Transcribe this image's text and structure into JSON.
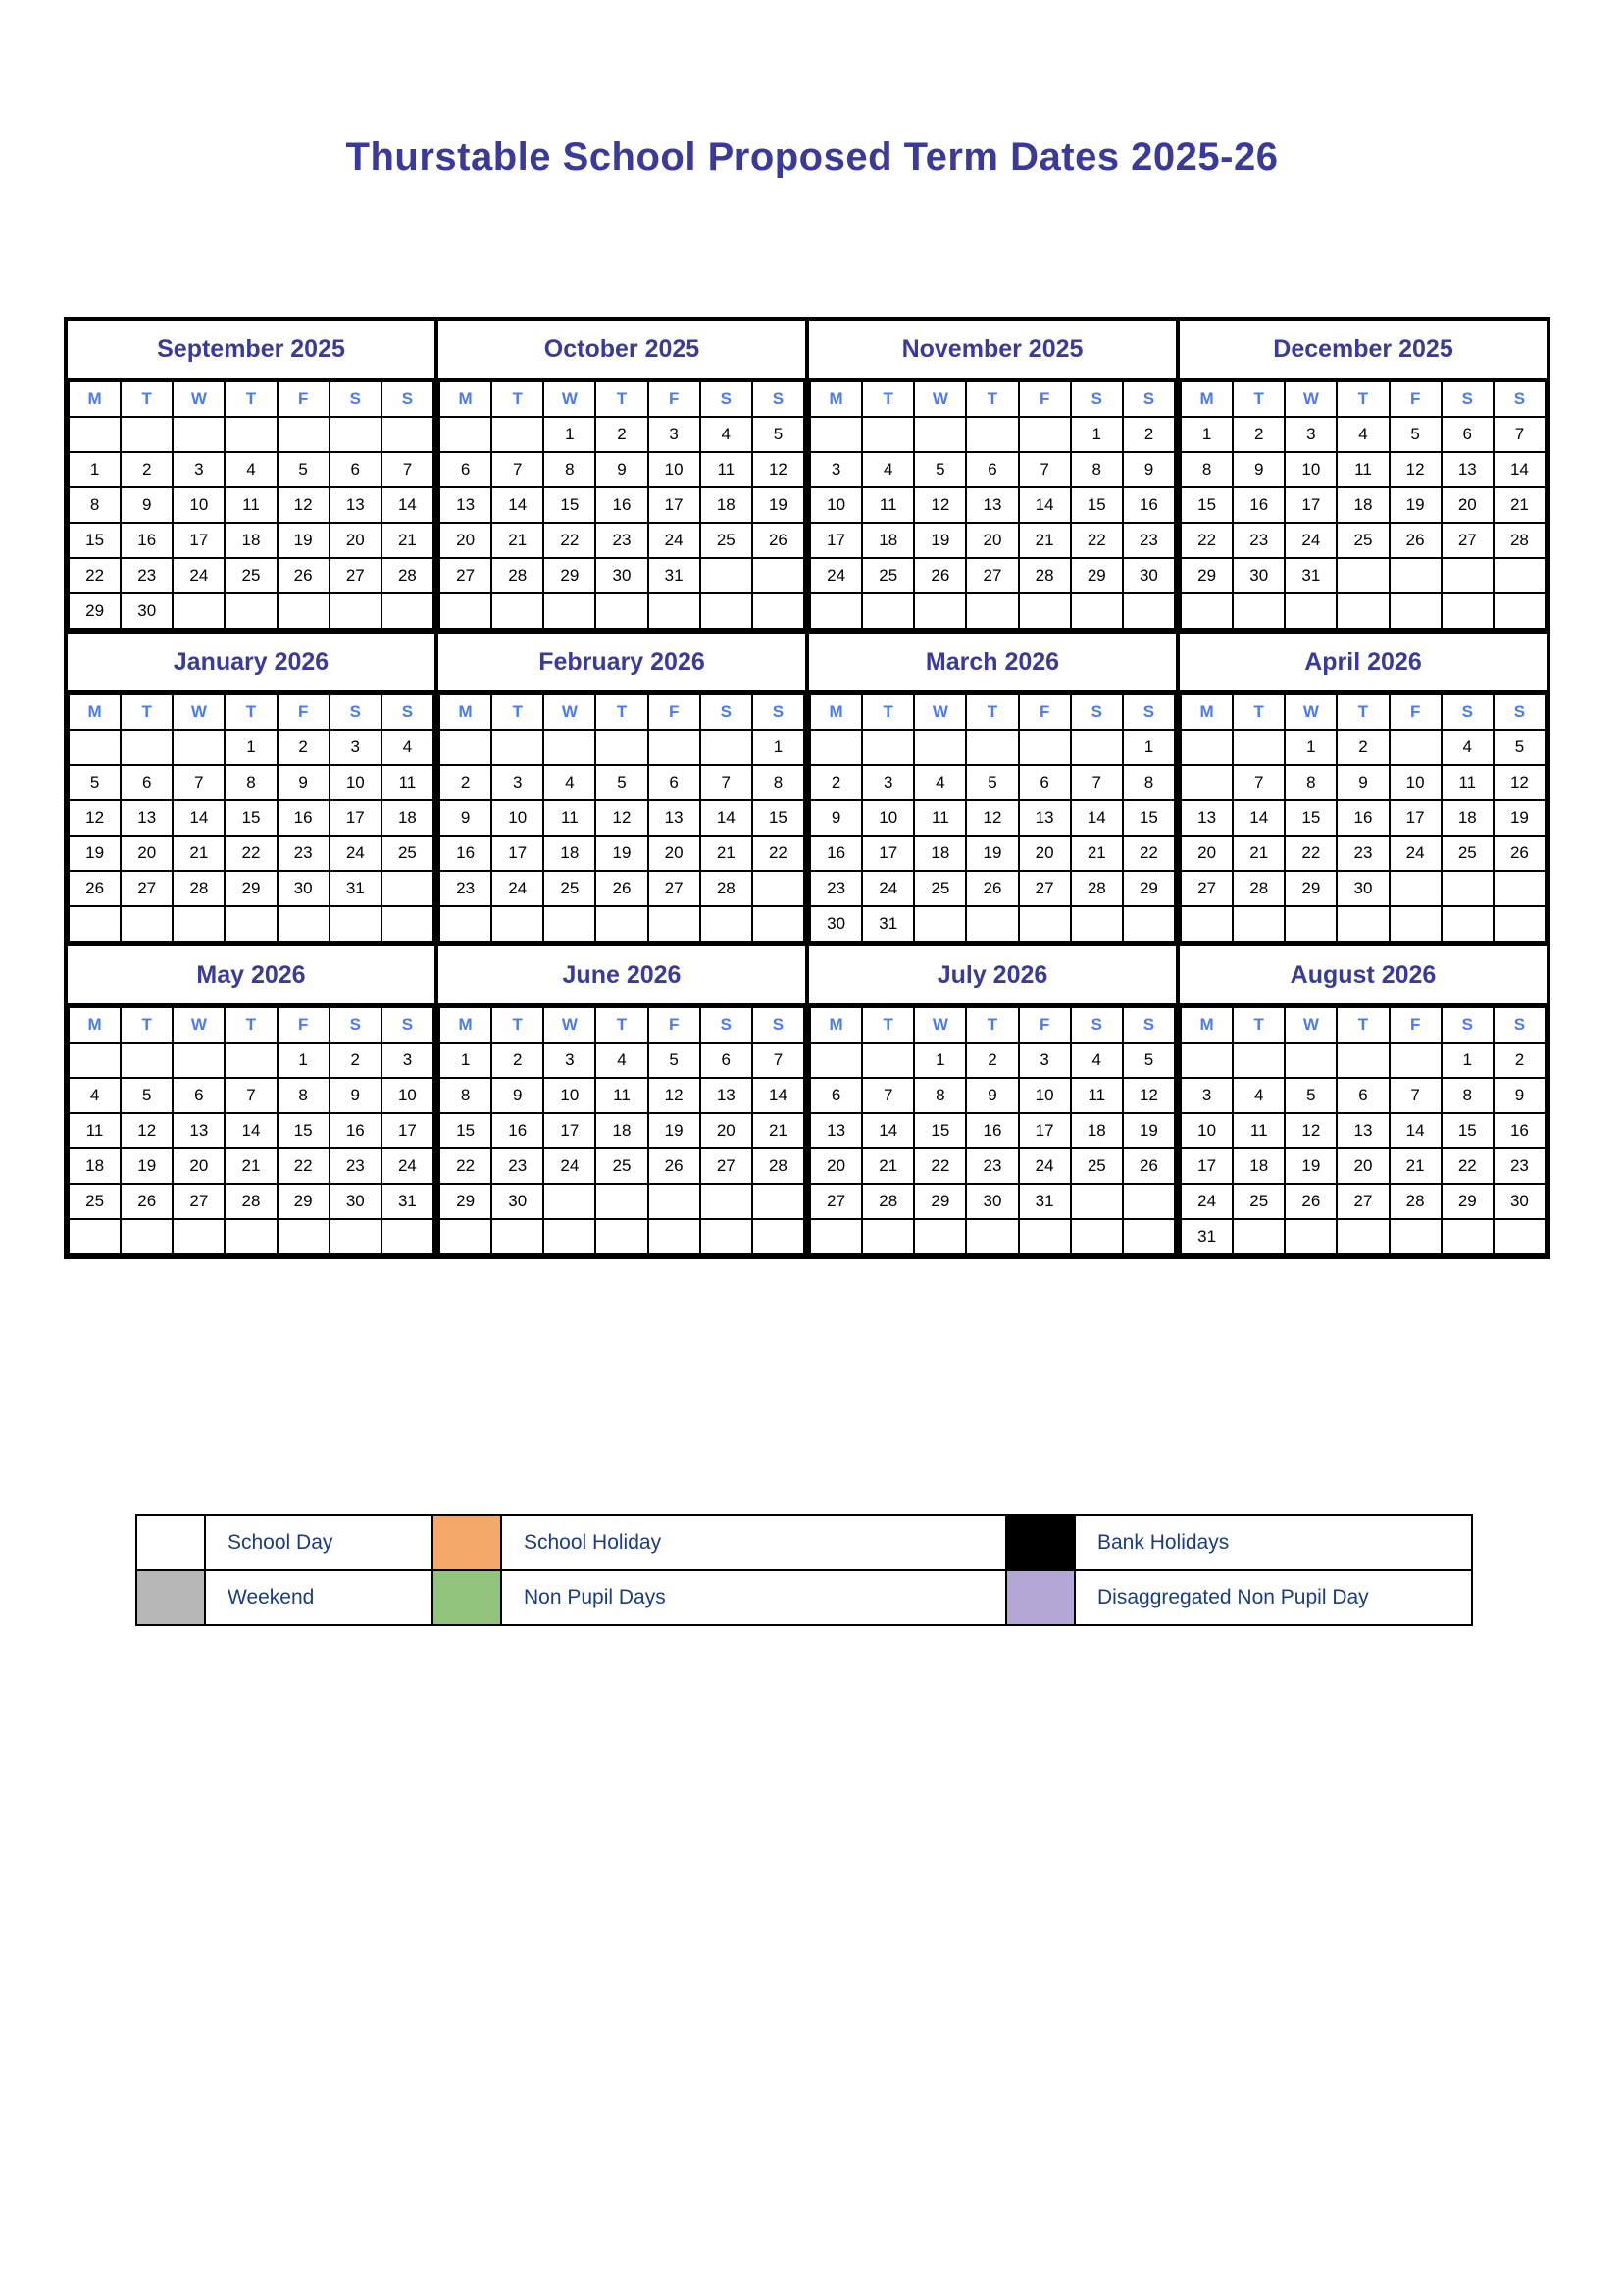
{
  "title": "Thurstable School Proposed Term Dates 2025-26",
  "colors": {
    "school_day": "#ffffff",
    "weekend": "#b7b7b7",
    "school_holiday": "#f4a86a",
    "non_pupil_days": "#93c47d",
    "bank_holidays": "#000000",
    "disaggregated_non_pupil_day": "#b4a7d6",
    "title_text": "#3a3a9b",
    "legend_text": "#1b3c82",
    "weekday_header_text": "#4a7bf0",
    "special_blue_day_text": "#3c50b4"
  },
  "day_headers": [
    "M",
    "T",
    "W",
    "T",
    "F",
    "S",
    "S"
  ],
  "cell_codes": {
    "e": "weekend",
    "h": "school_holiday",
    "n": "non_pupil_day",
    "b": "bank_holiday",
    "d": "disaggregated_non_pupil_day",
    "u": "blue_text"
  },
  "months": [
    {
      "name": "September 2025",
      "weeks": [
        [
          "",
          "",
          "",
          "",
          "",
          "|e",
          "|e"
        ],
        [
          "1|n",
          "2",
          "3",
          "4",
          "5",
          "6|e",
          "7|e"
        ],
        [
          "8",
          "9",
          "10",
          "11",
          "12",
          "13|e",
          "14|e"
        ],
        [
          "15",
          "16",
          "17",
          "18",
          "19",
          "20|e",
          "21|e"
        ],
        [
          "22",
          "23",
          "24",
          "25",
          "26",
          "27|e",
          "28|e"
        ],
        [
          "29",
          "30",
          "",
          "",
          "",
          "|e",
          "|e"
        ]
      ]
    },
    {
      "name": "October 2025",
      "weeks": [
        [
          "",
          "",
          "1",
          "2",
          "3",
          "4|e",
          "5|e"
        ],
        [
          "6",
          "7",
          "8",
          "9",
          "10",
          "11|e",
          "12|e"
        ],
        [
          "13",
          "14",
          "15",
          "16",
          "17",
          "18|e",
          "19|e"
        ],
        [
          "20|d",
          "21|d",
          "22|d",
          "23|d",
          "24|d",
          "25|e",
          "26|e"
        ],
        [
          "27|h",
          "28|h",
          "29|h",
          "30|h",
          "31|h",
          "|e",
          "|e"
        ],
        [
          "",
          "",
          "",
          "",
          "",
          "",
          ""
        ]
      ]
    },
    {
      "name": "November 2025",
      "weeks": [
        [
          "",
          "",
          "",
          "",
          "",
          "1|e",
          "2|e"
        ],
        [
          "3",
          "4",
          "5",
          "6",
          "7",
          "8|e",
          "9|e"
        ],
        [
          "10",
          "11",
          "12",
          "13",
          "14",
          "15|e",
          "16|e"
        ],
        [
          "17",
          "18",
          "19",
          "20",
          "21",
          "22|e",
          "23|e"
        ],
        [
          "24",
          "25",
          "26",
          "27",
          "28",
          "29|e",
          "30|e"
        ],
        [
          "",
          "",
          "",
          "",
          "",
          "",
          ""
        ]
      ]
    },
    {
      "name": "December 2025",
      "weeks": [
        [
          "1|u",
          "2|u",
          "3|u",
          "4|u",
          "5",
          "6|e",
          "7|e"
        ],
        [
          "8",
          "9",
          "10",
          "11",
          "12",
          "13|e",
          "14|e"
        ],
        [
          "15",
          "16",
          "17",
          "18",
          "19",
          "20|e",
          "21|e"
        ],
        [
          "22|h",
          "23|h",
          "24|h",
          "25|b",
          "26|b",
          "27|e",
          "28|e"
        ],
        [
          "29|h",
          "30|h",
          "31|h",
          "",
          "",
          "|e",
          "|e"
        ],
        [
          "",
          "",
          "",
          "",
          "",
          "",
          ""
        ]
      ]
    },
    {
      "name": "January 2026",
      "weeks": [
        [
          "",
          "",
          "",
          "1|b",
          "2|h",
          "3|e",
          "4|e"
        ],
        [
          "5",
          "6",
          "7",
          "8",
          "9",
          "10|e",
          "11|e"
        ],
        [
          "12",
          "13",
          "14",
          "15",
          "16",
          "17|e",
          "18|e"
        ],
        [
          "19",
          "20",
          "21",
          "22",
          "23",
          "24|e",
          "25|e"
        ],
        [
          "26",
          "27",
          "28",
          "29",
          "30",
          "31|e",
          "|e"
        ],
        [
          "",
          "",
          "",
          "",
          "",
          "",
          ""
        ]
      ]
    },
    {
      "name": "February 2026",
      "weeks": [
        [
          "",
          "",
          "",
          "",
          "",
          "|e",
          "1|e"
        ],
        [
          "2",
          "3",
          "4",
          "5",
          "6",
          "7|e",
          "8|e"
        ],
        [
          "9",
          "10",
          "11",
          "12",
          "13",
          "14|e",
          "15|e"
        ],
        [
          "16|h",
          "17|h",
          "18|h",
          "19|h",
          "20|h",
          "21|e",
          "22|e"
        ],
        [
          "23",
          "24",
          "25",
          "26",
          "27",
          "28|e",
          "|e"
        ],
        [
          "",
          "",
          "",
          "",
          "",
          "",
          ""
        ]
      ]
    },
    {
      "name": "March 2026",
      "weeks": [
        [
          "",
          "",
          "",
          "",
          "",
          "|e",
          "1|e"
        ],
        [
          "2",
          "3",
          "4",
          "5",
          "6",
          "7|e",
          "8|e"
        ],
        [
          "9",
          "10",
          "11",
          "12",
          "13",
          "14|e",
          "15|e"
        ],
        [
          "16",
          "17",
          "18",
          "19",
          "20",
          "21|e",
          "22|e"
        ],
        [
          "23",
          "24",
          "25",
          "26",
          "27",
          "28|e",
          "29|e"
        ],
        [
          "30|h",
          "31|h",
          "",
          "",
          "",
          "|e",
          "|e"
        ]
      ]
    },
    {
      "name": "April 2026",
      "weeks": [
        [
          "",
          "",
          "1|h",
          "2|h",
          "|b",
          "4|e",
          "5|e"
        ],
        [
          "|b",
          "7|h",
          "8|h",
          "9|h",
          "10|h",
          "11|e",
          "12|e"
        ],
        [
          "13",
          "14",
          "15",
          "16",
          "17",
          "18|e",
          "19|e"
        ],
        [
          "20",
          "21",
          "22",
          "23",
          "24",
          "25|e",
          "26|e"
        ],
        [
          "27",
          "28",
          "29",
          "30",
          "",
          "|e",
          "|e"
        ],
        [
          "",
          "",
          "",
          "",
          "",
          "",
          ""
        ]
      ]
    },
    {
      "name": "May 2026",
      "weeks": [
        [
          "",
          "",
          "",
          "",
          "1",
          "2|e",
          "3|e"
        ],
        [
          "4|b",
          "5",
          "6",
          "7",
          "8",
          "9|e",
          "10|e"
        ],
        [
          "11",
          "12",
          "13",
          "14",
          "15",
          "16|e",
          "17|e"
        ],
        [
          "18",
          "19",
          "20",
          "21",
          "22",
          "23|e",
          "24|e"
        ],
        [
          "25|b",
          "26|h",
          "27|h",
          "28|h",
          "29|h",
          "30|e",
          "31|e"
        ],
        [
          "",
          "",
          "",
          "",
          "",
          "",
          ""
        ]
      ]
    },
    {
      "name": "June 2026",
      "weeks": [
        [
          "1",
          "2",
          "3",
          "4",
          "5",
          "6|e",
          "7|e"
        ],
        [
          "8",
          "9",
          "10",
          "11",
          "12",
          "13|e",
          "14|e"
        ],
        [
          "15",
          "16",
          "17",
          "18",
          "19",
          "20|e",
          "21|e"
        ],
        [
          "22",
          "23",
          "24",
          "25",
          "26",
          "27|e",
          "28|e"
        ],
        [
          "29",
          "30",
          "",
          "",
          "",
          "|e",
          "|e"
        ],
        [
          "",
          "",
          "",
          "",
          "",
          "",
          ""
        ]
      ]
    },
    {
      "name": "July 2026",
      "weeks": [
        [
          "",
          "",
          "1",
          "2",
          "3",
          "4|e",
          "5|e"
        ],
        [
          "6",
          "7",
          "8",
          "9",
          "10",
          "11|e",
          "12|e"
        ],
        [
          "13",
          "14",
          "15",
          "16",
          "17",
          "18|e",
          "19|e"
        ],
        [
          "20|d",
          "21|h",
          "22|h",
          "23|h",
          "24|h",
          "25|e",
          "26|e"
        ],
        [
          "27|h",
          "28|h",
          "29|h",
          "30|h",
          "31|h",
          "|e",
          "|e"
        ],
        [
          "",
          "",
          "",
          "",
          "",
          "",
          ""
        ]
      ]
    },
    {
      "name": "August 2026",
      "weeks": [
        [
          "",
          "",
          "",
          "",
          "",
          "1|e",
          "2|e"
        ],
        [
          "3|h",
          "4|h",
          "5|h",
          "6|h",
          "7|h",
          "8|e",
          "9|e"
        ],
        [
          "10|h",
          "11|h",
          "12|h",
          "13|h",
          "14|h",
          "15|e",
          "16|e"
        ],
        [
          "17|h",
          "18|h",
          "19|h",
          "20|h",
          "21|h",
          "22|e",
          "23|e"
        ],
        [
          "24|h",
          "25|h",
          "26|h",
          "27|h",
          "28|h",
          "29|e",
          "30|eu"
        ],
        [
          "31|b",
          "",
          "",
          "",
          "",
          "",
          ""
        ]
      ]
    }
  ],
  "legend": {
    "rows": [
      [
        {
          "label": "School Day",
          "key": "school_day"
        },
        {
          "label": "School Holiday",
          "key": "school_holiday"
        },
        {
          "label": "Bank Holidays",
          "key": "bank_holidays"
        }
      ],
      [
        {
          "label": "Weekend",
          "key": "weekend"
        },
        {
          "label": "Non Pupil Days",
          "key": "non_pupil_days"
        },
        {
          "label": "Disaggregated Non Pupil Day",
          "key": "disaggregated_non_pupil_day"
        }
      ]
    ]
  }
}
